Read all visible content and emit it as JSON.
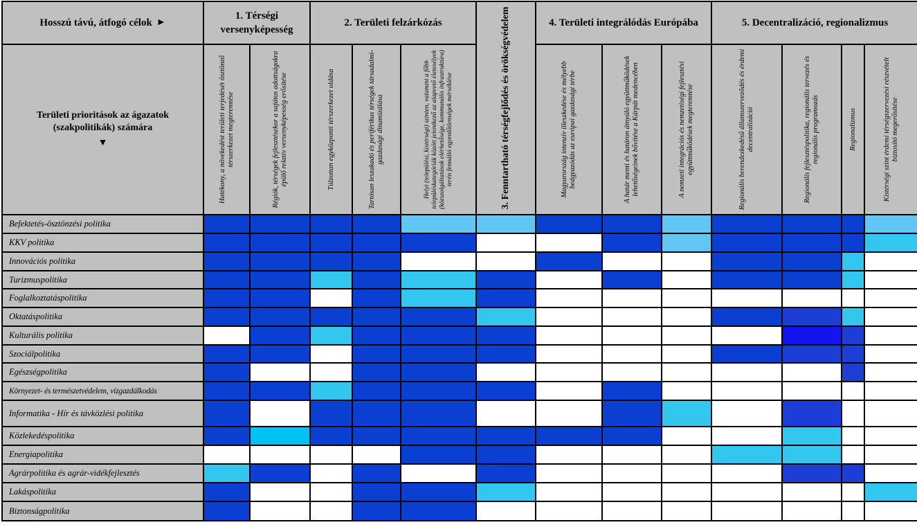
{
  "header": {
    "corner_label": "Hosszú távú, átfogó célok",
    "corner_arrow": "►",
    "groups": [
      {
        "label": "1. Térségi versenyképesség"
      },
      {
        "label": "2. Területi felzárkózás"
      },
      {
        "label": "3. Fenntartható térségfejlődés és örökségvédelem"
      },
      {
        "label": "4. Területi integrálódás Európába"
      },
      {
        "label": "5. Decentralizáció, regionalizmus"
      }
    ],
    "row_corner_label": "Területi prioritások az ágazatok (szakpolitikák) számára",
    "row_corner_arrow": "▼"
  },
  "subheaders": [
    "Hatékony, a növekedést területi terjedését ösztönző térszerkezet megteremtése",
    "Régiók, térségek fejlesztésekor a sajátos adottságokra épülő relatív versenyképesség erősítése",
    "Túlzottan egyközponti térszerkezet oldása",
    "Tartósan leszakadó és periférikus térségek társadalmi-gazdasági dinamizálása",
    "Helyi (települési, kistérségi) szinten, valamint a főbb településkategóriák között jelentkező az alapvető életesélyek (közszolgáltatások elérhetősége, kommunális infrastruktúra) terén fennálló egyenlőtlenségek mérséklése",
    "Magyarország intenzív illeszkedése és mélyebb beágyazódás az európai gazdasági térbe",
    "A határ menti és határon átnyúló együttműködések lehetőségeinek bővítése a Kárpát medencében",
    "A nemzeti integrációs és nemzetiségi fejlesztési együttműködések megteremtése",
    "Regionális berendezkedésű államszervezõdés és érdemi decentralizáció",
    "Regionális fejlesztéspolitika, regionális tervezés és regionális programozás",
    "Regionalizmus",
    "Kistérségi szint érdemi térségszervezési részvételt biztosító megerősítése"
  ],
  "rows": [
    {
      "label": "Befektetés-ösztönzési politika",
      "cells": [
        "D",
        "D",
        "D",
        "D",
        "L",
        "L",
        "D",
        "D",
        "L",
        "D",
        "D",
        "D",
        "L"
      ]
    },
    {
      "label": "KKV politika",
      "cells": [
        "D",
        "D",
        "D",
        "D",
        "D",
        "W",
        "W",
        "D",
        "L",
        "D",
        "D",
        "D",
        "C"
      ]
    },
    {
      "label": "Innovációs politika",
      "cells": [
        "D",
        "D",
        "D",
        "D",
        "W",
        "W",
        "D",
        "W",
        "W",
        "D",
        "D",
        "C",
        "W"
      ]
    },
    {
      "label": "Turizmuspolitika",
      "cells": [
        "D",
        "D",
        "C",
        "D",
        "C",
        "D",
        "W",
        "D",
        "W",
        "D",
        "D",
        "C",
        "W"
      ]
    },
    {
      "label": "Foglalkoztatáspolitika",
      "cells": [
        "D",
        "D",
        "W",
        "D",
        "C",
        "D",
        "W",
        "W",
        "W",
        "W",
        "W",
        "W",
        "W"
      ]
    },
    {
      "label": "Oktatáspolitika",
      "cells": [
        "D",
        "D",
        "D",
        "D",
        "D",
        "C",
        "W",
        "W",
        "W",
        "D",
        "d",
        "C",
        "W"
      ]
    },
    {
      "label": "Kulturális politika",
      "cells": [
        "W",
        "D",
        "C",
        "D",
        "D",
        "D",
        "W",
        "W",
        "W",
        "W",
        "B",
        "d",
        "W"
      ]
    },
    {
      "label": "Szociálpolitika",
      "cells": [
        "D",
        "D",
        "W",
        "D",
        "D",
        "D",
        "W",
        "W",
        "W",
        "D",
        "d",
        "d",
        "W"
      ]
    },
    {
      "label": "Egészségpolitika",
      "cells": [
        "D",
        "W",
        "W",
        "D",
        "D",
        "W",
        "W",
        "W",
        "W",
        "W",
        "W",
        "d",
        "W"
      ]
    },
    {
      "label": "Környezet- és természetvédelem, vízgazdálkodás",
      "cells": [
        "D",
        "D",
        "C",
        "D",
        "D",
        "D",
        "W",
        "D",
        "W",
        "W",
        "W",
        "W",
        "W"
      ]
    },
    {
      "label": "Informatika - Hír és távközlési politika",
      "cells": [
        "D",
        "W",
        "D",
        "D",
        "D",
        "W",
        "W",
        "D",
        "C",
        "W",
        "d",
        "W",
        "W"
      ]
    },
    {
      "label": "Közlekedéspolitika",
      "cells": [
        "D",
        "c",
        "D",
        "D",
        "D",
        "D",
        "D",
        "D",
        "W",
        "W",
        "C",
        "W",
        "W"
      ]
    },
    {
      "label": "Energiapolitika",
      "cells": [
        "W",
        "W",
        "W",
        "W",
        "D",
        "D",
        "W",
        "W",
        "W",
        "C",
        "C",
        "W",
        "W"
      ]
    },
    {
      "label": "Agrárpolitika és agrár-vidékfejlesztés",
      "cells": [
        "C",
        "D",
        "W",
        "D",
        "W",
        "D",
        "W",
        "W",
        "W",
        "W",
        "d",
        "d",
        "W"
      ]
    },
    {
      "label": "Lakáspolitika",
      "cells": [
        "D",
        "W",
        "W",
        "D",
        "D",
        "C",
        "W",
        "W",
        "W",
        "W",
        "W",
        "W",
        "C"
      ]
    },
    {
      "label": "Biztonságpolitika",
      "cells": [
        "D",
        "W",
        "W",
        "D",
        "D",
        "W",
        "W",
        "W",
        "W",
        "W",
        "W",
        "W",
        "W"
      ]
    }
  ],
  "colors": {
    "D": "#0a3fd1",
    "d": "#1c3ed6",
    "B": "#1414ee",
    "L": "#61c6f3",
    "C": "#33c7ef",
    "c": "#00c2f5",
    "W": "#ffffff",
    "header_bg": "#c0c0c0",
    "grid_line": "#000000"
  }
}
